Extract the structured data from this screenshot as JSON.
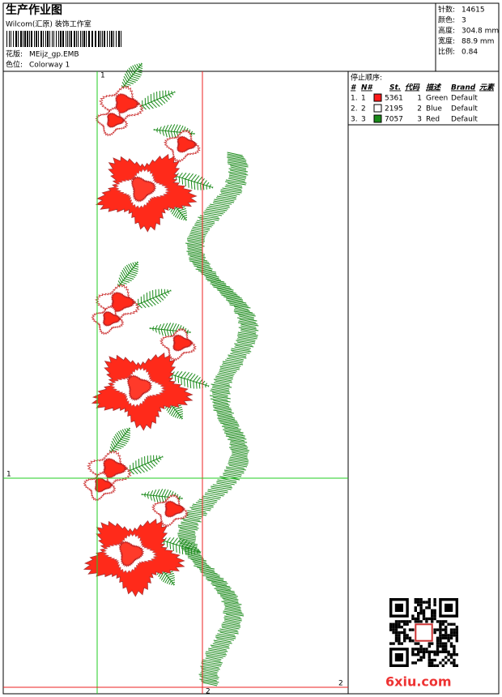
{
  "header": {
    "title": "生产作业图",
    "company": "Wilcom(汇原) 装饰工作室",
    "design_label": "花版:",
    "design": "MEijz_gp.EMB",
    "colorway_label": "色位:",
    "colorway": "Colorway 1"
  },
  "info": [
    {
      "label": "针数:",
      "value": "14615"
    },
    {
      "label": "颜色:",
      "value": "3"
    },
    {
      "label": "高度:",
      "value": "304.8 mm"
    },
    {
      "label": "宽度:",
      "value": "88.9 mm"
    },
    {
      "label": "比例:",
      "value": "0.84"
    }
  ],
  "stop_sequence": {
    "title": "停止顺序:",
    "columns": [
      "#",
      "N#",
      "St.",
      "代码",
      "描述",
      "Brand",
      "元素"
    ],
    "rows": [
      {
        "index": "1.",
        "needle": "1",
        "color": "#ff1a1a",
        "stitches": "5361",
        "code": "1",
        "description": "Green",
        "brand": "Default"
      },
      {
        "index": "2.",
        "needle": "2",
        "color": "#ffffff",
        "stitches": "2195",
        "code": "2",
        "description": "Blue",
        "brand": "Default"
      },
      {
        "index": "3.",
        "needle": "3",
        "color": "#1a8a1a",
        "stitches": "7057",
        "code": "3",
        "description": "Red",
        "brand": "Default"
      }
    ]
  },
  "guides": {
    "v1": "1",
    "h1": "1",
    "v2": "2",
    "h2": "2"
  },
  "watermark": "6xiu.com"
}
